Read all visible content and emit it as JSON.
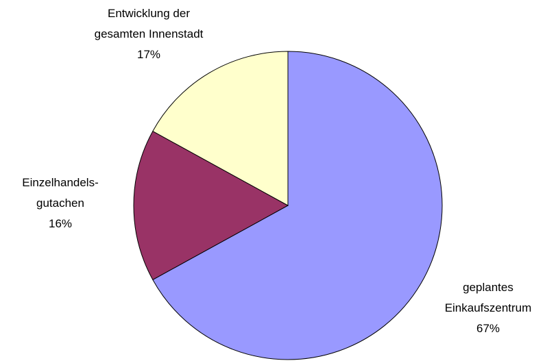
{
  "chart_data": {
    "type": "pie",
    "categories": [
      "geplantes Einkaufszentrum",
      "Einzelhandels-gutachen",
      "Entwicklung der gesamten Innenstadt"
    ],
    "values": [
      67,
      16,
      17
    ],
    "value_labels": [
      "67%",
      "16%",
      "17%"
    ],
    "colors": [
      "#9999ff",
      "#993366",
      "#ffffcc"
    ]
  }
}
